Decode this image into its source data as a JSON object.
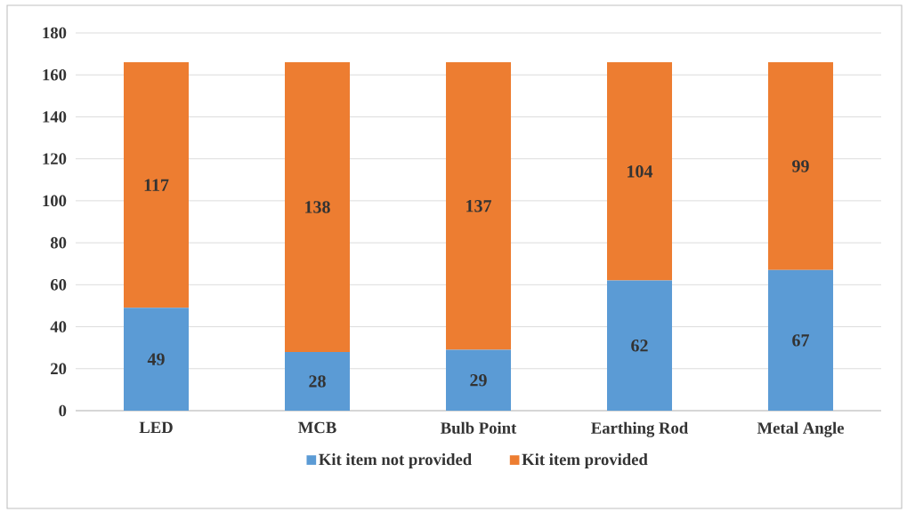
{
  "chart_data": {
    "type": "bar",
    "stacked": true,
    "categories": [
      "LED",
      "MCB",
      "Bulb Point",
      "Earthing Rod",
      "Metal Angle"
    ],
    "series": [
      {
        "name": "Kit item not provided",
        "color": "#5b9bd5",
        "values": [
          49,
          28,
          29,
          62,
          67
        ]
      },
      {
        "name": "Kit item provided",
        "color": "#ed7d31",
        "values": [
          117,
          138,
          137,
          104,
          99
        ]
      }
    ],
    "ylim": [
      0,
      180
    ],
    "yticks": [
      0,
      20,
      40,
      60,
      80,
      100,
      120,
      140,
      160,
      180
    ],
    "grid": "y",
    "legend": "bottom",
    "data_labels": true
  }
}
